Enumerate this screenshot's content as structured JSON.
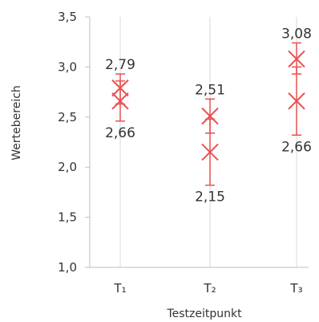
{
  "chart_data": {
    "type": "scatter",
    "title": "",
    "xlabel": "Testzeitpunkt",
    "ylabel": "Wertebereich",
    "categories": [
      "T₁",
      "T₂",
      "T₃"
    ],
    "ylim": [
      1.0,
      3.5
    ],
    "ytick_values": [
      1.0,
      1.5,
      2.0,
      2.5,
      3.0,
      3.5
    ],
    "ytick_labels": [
      "1,0",
      "1,5",
      "2,0",
      "2,5",
      "3,0",
      "3,5"
    ],
    "grid": "vertical lines at category positions",
    "marker": "x",
    "color": "#e8504f",
    "series": [
      {
        "values": [
          2.79,
          2.51,
          3.08
        ],
        "error_low": [
          2.63,
          2.34,
          2.93
        ],
        "error_high": [
          2.93,
          2.68,
          3.24
        ],
        "labels": [
          "2,79",
          "2,51",
          "3,08"
        ]
      },
      {
        "values": [
          2.66,
          2.15,
          2.66
        ],
        "error_low": [
          2.46,
          1.82,
          2.32
        ],
        "error_high": [
          2.86,
          2.48,
          3.0
        ],
        "labels": [
          "2,66",
          "2,15",
          "2,66"
        ]
      }
    ]
  }
}
